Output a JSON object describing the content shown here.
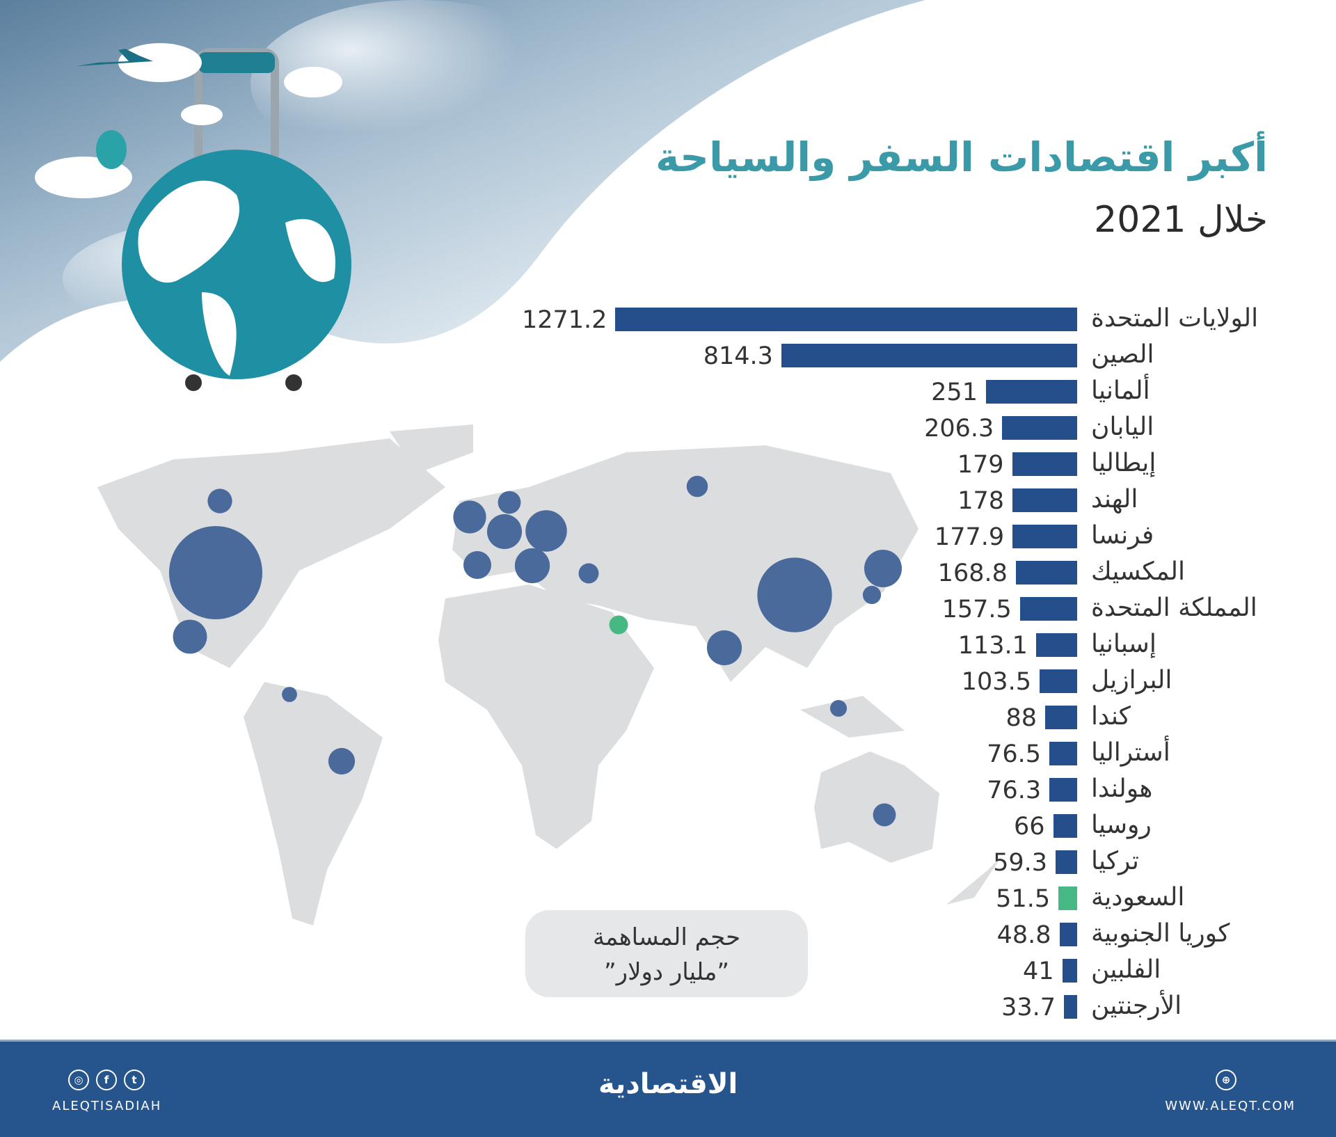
{
  "title": "أكبر اقتصادات السفر والسياحة",
  "subtitle": "خلال 2021",
  "legend": {
    "line1": "حجم المساهمة",
    "line2": "”مليار دولار”"
  },
  "colors": {
    "bar": "#254f8a",
    "highlight": "#45b883",
    "title": "#3a9aa8",
    "bubble": "#4a6a9c",
    "footer": "#26548c"
  },
  "chart_data": {
    "type": "bar",
    "orientation": "horizontal",
    "unit": "مليار دولار",
    "categories": [
      "الولايات المتحدة",
      "الصين",
      "ألمانيا",
      "اليابان",
      "إيطاليا",
      "الهند",
      "فرنسا",
      "المكسيك",
      "المملكة المتحدة",
      "إسبانيا",
      "البرازيل",
      "كندا",
      "أستراليا",
      "هولندا",
      "روسيا",
      "تركيا",
      "السعودية",
      "كوريا الجنوبية",
      "الفلبين",
      "الأرجنتين"
    ],
    "values": [
      1271.2,
      814.3,
      251,
      206.3,
      179,
      178,
      177.9,
      168.8,
      157.5,
      113.1,
      103.5,
      88,
      76.5,
      76.3,
      66,
      59.3,
      51.5,
      48.8,
      41,
      33.7
    ],
    "value_labels": [
      "1271.2",
      "814.3",
      "251",
      "206.3",
      "179",
      "178",
      "177.9",
      "168.8",
      "157.5",
      "113.1",
      "103.5",
      "88",
      "76.5",
      "76.3",
      "66",
      "59.3",
      "51.5",
      "48.8",
      "41",
      "33.7"
    ],
    "highlight": "السعودية"
  },
  "footer": {
    "handle": "ALEQTISADIAH",
    "logo": "الاقتصادية",
    "website": "WWW.ALEQT.COM",
    "icons": [
      "instagram-icon",
      "facebook-icon",
      "twitter-icon",
      "globe-icon"
    ]
  }
}
